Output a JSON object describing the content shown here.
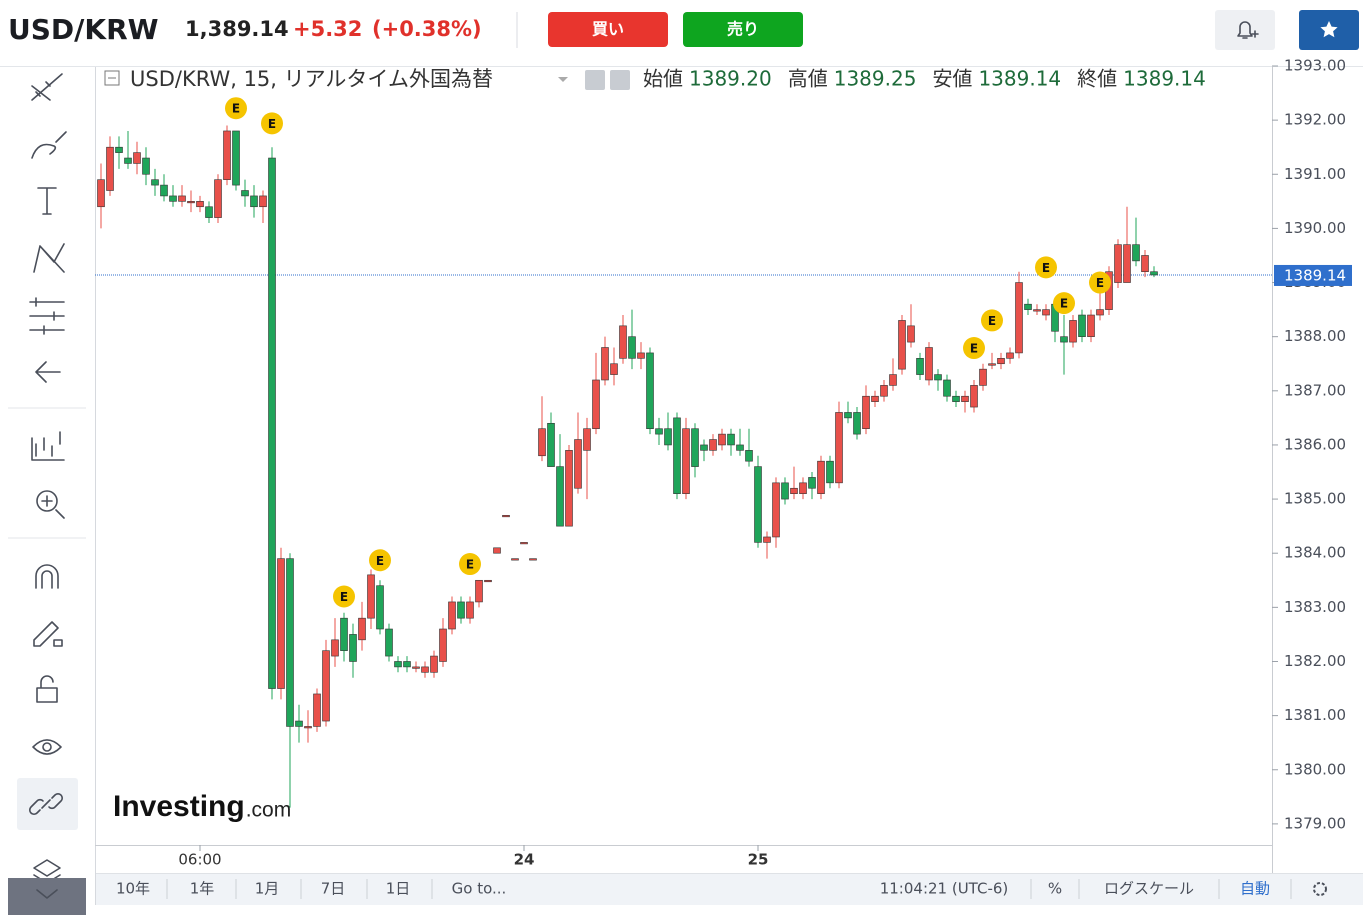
{
  "header": {
    "symbol": "USD/KRW",
    "price": "1,389.14",
    "change": "+5.32",
    "change_pct": "(+0.38%)",
    "buy": "買い",
    "sell": "売り"
  },
  "chart_data": {
    "type": "candlestick",
    "legend_title": "USD/KRW, 15, リアルタイム外国為替",
    "ohlc_legend": [
      {
        "label": "始値",
        "value": "1389.20"
      },
      {
        "label": "高値",
        "value": "1389.25"
      },
      {
        "label": "安値",
        "value": "1389.14"
      },
      {
        "label": "終値",
        "value": "1389.14"
      }
    ],
    "up_color": "#e8504a",
    "down_color": "#1fa55a",
    "last_price": 1389.14,
    "last_price_color": "#2f6fcc",
    "grid": false,
    "ylim": [
      1378.61,
      1393.0
    ],
    "yticks": [
      {
        "value": 1379,
        "label": "1379.00"
      },
      {
        "value": 1380,
        "label": "1380.00"
      },
      {
        "value": 1381,
        "label": "1381.00"
      },
      {
        "value": 1382,
        "label": "1382.00"
      },
      {
        "value": 1383,
        "label": "1383.00"
      },
      {
        "value": 1384,
        "label": "1384.00"
      },
      {
        "value": 1385,
        "label": "1385.00"
      },
      {
        "value": 1386,
        "label": "1386.00"
      },
      {
        "value": 1387,
        "label": "1387.00"
      },
      {
        "value": 1388,
        "label": "1388.00"
      },
      {
        "value": 1389,
        "label": "1389.00"
      },
      {
        "value": 1390,
        "label": "1390.00"
      },
      {
        "value": 1391,
        "label": "1391.00"
      },
      {
        "value": 1392,
        "label": "1392.00"
      },
      {
        "value": 1393,
        "label": "1393.00"
      }
    ],
    "categories": [
      null,
      null,
      null,
      null,
      null,
      null,
      null,
      null,
      null,
      null,
      null,
      "06:00",
      null,
      null,
      null,
      null,
      null,
      null,
      null,
      null,
      null,
      null,
      null,
      null,
      null,
      null,
      null,
      null,
      null,
      null,
      null,
      null,
      null,
      null,
      null,
      null,
      null,
      null,
      null,
      null,
      null,
      null,
      null,
      null,
      null,
      null,
      null,
      "24",
      null,
      null,
      null,
      null,
      null,
      null,
      null,
      null,
      null,
      null,
      null,
      null,
      null,
      null,
      null,
      null,
      null,
      null,
      null,
      null,
      null,
      null,
      null,
      null,
      null,
      "25",
      null,
      null,
      null,
      null,
      null,
      null,
      null,
      null,
      null,
      null,
      null,
      null,
      null,
      null,
      null,
      null,
      null,
      null,
      null,
      null,
      null,
      null,
      null,
      null,
      null,
      null,
      null,
      null,
      null,
      null,
      null,
      null,
      null,
      null,
      null,
      null,
      null,
      null,
      null,
      null,
      null,
      null,
      null,
      null
    ],
    "open": [
      1390.4,
      1390.7,
      1391.5,
      1391.3,
      1391.2,
      1391.3,
      1390.9,
      1390.8,
      1390.6,
      1390.5,
      1390.5,
      1390.4,
      1390.4,
      1390.2,
      1390.9,
      1391.8,
      1390.7,
      1390.6,
      1390.4,
      1391.3,
      1381.5,
      1383.9,
      1380.9,
      1380.8,
      1380.8,
      1380.9,
      1382.1,
      1382.8,
      1382.5,
      1382.4,
      1382.8,
      1383.4,
      1382.6,
      1382.0,
      1382.0,
      1381.9,
      1381.8,
      1381.8,
      1382.0,
      1382.6,
      1383.1,
      1382.8,
      1383.1,
      1383.5,
      1384.0,
      1384.7,
      1383.9,
      1384.2,
      1383.9,
      1385.8,
      1386.4,
      1385.6,
      1384.5,
      1385.2,
      1385.9,
      1386.3,
      1387.2,
      1387.3,
      1387.6,
      1388.0,
      1387.6,
      1387.7,
      1386.3,
      1386.3,
      1386.5,
      1385.1,
      1386.3,
      1386.0,
      1385.9,
      1386.0,
      1386.2,
      1386.0,
      1385.9,
      1385.6,
      1384.2,
      1384.3,
      1385.3,
      1385.1,
      1385.1,
      1385.4,
      1385.1,
      1385.7,
      1385.3,
      1386.6,
      1386.6,
      1386.3,
      1386.8,
      1386.9,
      1387.1,
      1387.4,
      1387.9,
      1387.6,
      1387.2,
      1387.3,
      1387.2,
      1386.9,
      1386.8,
      1386.7,
      1387.1,
      1387.5,
      1387.5,
      1387.6,
      1387.7,
      1388.6,
      1388.5,
      1388.4,
      1388.6,
      1388.0,
      1387.9,
      1388.4,
      1388.0,
      1388.4,
      1388.5,
      1389.0,
      1389.0,
      1389.7,
      1389.2,
      1389.2
    ],
    "close": [
      1390.9,
      1391.5,
      1391.4,
      1391.2,
      1391.4,
      1391.0,
      1390.8,
      1390.6,
      1390.5,
      1390.6,
      1390.5,
      1390.5,
      1390.2,
      1390.9,
      1391.8,
      1390.8,
      1390.6,
      1390.4,
      1390.6,
      1381.5,
      1383.9,
      1380.8,
      1380.8,
      1380.8,
      1381.4,
      1382.2,
      1382.4,
      1382.2,
      1382.0,
      1382.8,
      1383.6,
      1382.6,
      1382.1,
      1381.9,
      1381.9,
      1381.9,
      1381.9,
      1382.1,
      1382.6,
      1383.1,
      1382.8,
      1383.1,
      1383.5,
      1383.5,
      1384.1,
      1384.7,
      1383.9,
      1384.2,
      1383.9,
      1386.3,
      1385.6,
      1384.5,
      1385.9,
      1386.1,
      1386.3,
      1387.2,
      1387.8,
      1387.5,
      1388.2,
      1387.6,
      1387.7,
      1386.3,
      1386.2,
      1386.0,
      1385.1,
      1386.3,
      1385.6,
      1385.9,
      1386.1,
      1386.2,
      1386.0,
      1385.9,
      1385.7,
      1384.2,
      1384.3,
      1385.3,
      1385.0,
      1385.2,
      1385.3,
      1385.2,
      1385.7,
      1385.3,
      1386.6,
      1386.5,
      1386.2,
      1386.9,
      1386.9,
      1387.1,
      1387.3,
      1388.3,
      1388.2,
      1387.3,
      1387.8,
      1387.2,
      1386.9,
      1386.8,
      1386.9,
      1387.1,
      1387.4,
      1387.5,
      1387.6,
      1387.7,
      1389.0,
      1388.5,
      1388.5,
      1388.5,
      1388.1,
      1387.9,
      1388.3,
      1388.0,
      1388.4,
      1388.5,
      1389.2,
      1389.7,
      1389.7,
      1389.4,
      1389.5,
      1389.14
    ],
    "high": [
      1391.2,
      1391.7,
      1391.7,
      1391.8,
      1391.6,
      1391.5,
      1391.1,
      1391.0,
      1390.8,
      1390.8,
      1390.7,
      1390.6,
      1390.5,
      1391.0,
      1391.9,
      1391.8,
      1390.9,
      1390.8,
      1390.7,
      1391.5,
      1384.1,
      1384.0,
      1381.2,
      1381.1,
      1381.5,
      1382.4,
      1382.8,
      1382.9,
      1382.7,
      1383.1,
      1383.7,
      1383.5,
      1382.7,
      1382.1,
      1382.1,
      1382.0,
      1382.0,
      1382.2,
      1382.8,
      1383.2,
      1383.2,
      1383.2,
      1383.5,
      1383.5,
      1384.1,
      1384.7,
      1383.9,
      1384.2,
      1383.9,
      1386.9,
      1386.6,
      1386.2,
      1386.0,
      1386.6,
      1386.5,
      1387.7,
      1388.0,
      1387.8,
      1388.4,
      1388.5,
      1387.9,
      1387.8,
      1386.5,
      1386.6,
      1386.6,
      1386.5,
      1386.4,
      1386.1,
      1386.2,
      1386.3,
      1386.3,
      1386.3,
      1386.3,
      1385.8,
      1384.4,
      1385.4,
      1385.4,
      1385.6,
      1385.4,
      1385.5,
      1385.8,
      1385.8,
      1386.8,
      1386.8,
      1386.7,
      1387.1,
      1387.0,
      1387.2,
      1387.6,
      1388.4,
      1388.6,
      1387.7,
      1387.9,
      1387.4,
      1387.3,
      1387.0,
      1387.0,
      1387.2,
      1387.5,
      1387.7,
      1387.7,
      1387.8,
      1389.2,
      1388.7,
      1388.6,
      1388.6,
      1388.7,
      1388.4,
      1388.4,
      1388.5,
      1388.5,
      1388.8,
      1389.3,
      1389.8,
      1390.4,
      1390.2,
      1389.6,
      1389.3
    ],
    "low": [
      1390.0,
      1390.6,
      1391.1,
      1391.1,
      1391.0,
      1390.8,
      1390.6,
      1390.5,
      1390.4,
      1390.4,
      1390.3,
      1390.3,
      1390.1,
      1390.1,
      1390.8,
      1390.7,
      1390.4,
      1390.2,
      1390.1,
      1381.3,
      1381.3,
      1379.3,
      1380.5,
      1380.5,
      1380.7,
      1380.8,
      1381.9,
      1382.0,
      1381.7,
      1382.2,
      1382.6,
      1382.5,
      1382.0,
      1381.8,
      1381.8,
      1381.8,
      1381.7,
      1381.7,
      1381.9,
      1382.5,
      1382.7,
      1382.7,
      1383.0,
      1383.5,
      1384.0,
      1384.7,
      1383.9,
      1384.2,
      1383.9,
      1385.7,
      1385.6,
      1384.5,
      1384.5,
      1385.1,
      1385.0,
      1386.2,
      1387.1,
      1387.1,
      1387.5,
      1387.4,
      1387.4,
      1386.2,
      1386.0,
      1385.9,
      1385.0,
      1385.0,
      1385.4,
      1385.7,
      1385.8,
      1385.9,
      1385.8,
      1385.8,
      1385.6,
      1384.1,
      1383.9,
      1384.1,
      1384.9,
      1385.0,
      1385.0,
      1385.0,
      1385.0,
      1385.2,
      1385.2,
      1386.4,
      1386.1,
      1386.2,
      1386.7,
      1386.8,
      1387.0,
      1387.3,
      1387.8,
      1387.2,
      1387.1,
      1387.0,
      1386.8,
      1386.7,
      1386.6,
      1386.6,
      1387.0,
      1387.4,
      1387.4,
      1387.5,
      1387.6,
      1388.4,
      1388.4,
      1388.3,
      1387.9,
      1387.3,
      1387.8,
      1387.9,
      1387.9,
      1388.3,
      1388.4,
      1388.9,
      1389.0,
      1389.3,
      1389.1,
      1389.1
    ],
    "events": [
      {
        "index": 15,
        "value": 1392.22,
        "label": "E"
      },
      {
        "index": 19,
        "value": 1391.94,
        "label": "E"
      },
      {
        "index": 27,
        "value": 1383.2,
        "label": "E"
      },
      {
        "index": 31,
        "value": 1383.87,
        "label": "E"
      },
      {
        "index": 41,
        "value": 1383.8,
        "label": "E"
      },
      {
        "index": 97,
        "value": 1387.79,
        "label": "E"
      },
      {
        "index": 99,
        "value": 1388.3,
        "label": "E"
      },
      {
        "index": 105,
        "value": 1389.28,
        "label": "E"
      },
      {
        "index": 107,
        "value": 1388.62,
        "label": "E"
      },
      {
        "index": 111,
        "value": 1389.0,
        "label": "E"
      }
    ],
    "watermark": {
      "brand": "Investing",
      "suffix": ".com"
    }
  },
  "bottom_bar": {
    "ranges": [
      "10年",
      "1年",
      "1月",
      "7日",
      "1日"
    ],
    "goto": "Go to...",
    "clock": "11:04:21 (UTC-6)",
    "percent": "%",
    "log": "ログスケール",
    "auto": "自動"
  }
}
